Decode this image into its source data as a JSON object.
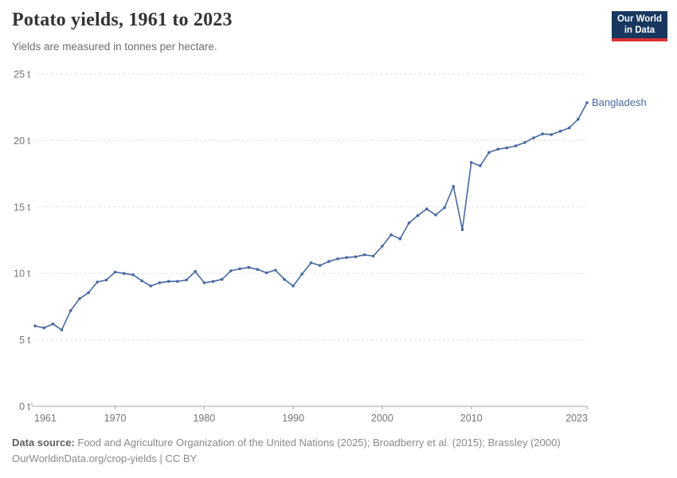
{
  "header": {
    "title": "Potato yields, 1961 to 2023",
    "subtitle": "Yields are measured in tonnes per hectare.",
    "logo": {
      "line1": "Our World",
      "line2": "in Data",
      "bg_color": "#18375f",
      "stripe_color": "#dc2e34"
    }
  },
  "chart_data": {
    "type": "line",
    "title": "Potato yields, 1961 to 2023",
    "ylabel": "tonnes per hectare",
    "unit": "t",
    "grid": "horizontal-dashed",
    "legend_position": "end-of-line-label",
    "x_range": [
      1961,
      2023
    ],
    "ylim": [
      0,
      25
    ],
    "x": [
      1961,
      1962,
      1963,
      1964,
      1965,
      1966,
      1967,
      1968,
      1969,
      1970,
      1971,
      1972,
      1973,
      1974,
      1975,
      1976,
      1977,
      1978,
      1979,
      1980,
      1981,
      1982,
      1983,
      1984,
      1985,
      1986,
      1987,
      1988,
      1989,
      1990,
      1991,
      1992,
      1993,
      1994,
      1995,
      1996,
      1997,
      1998,
      1999,
      2000,
      2001,
      2002,
      2003,
      2004,
      2005,
      2006,
      2007,
      2008,
      2009,
      2010,
      2011,
      2012,
      2013,
      2014,
      2015,
      2016,
      2017,
      2018,
      2019,
      2020,
      2021,
      2022,
      2023
    ],
    "series": [
      {
        "name": "Bangladesh",
        "color": "#4868a0",
        "values": [
          6.05,
          5.9,
          6.2,
          5.75,
          7.2,
          8.1,
          8.55,
          9.35,
          9.5,
          10.1,
          10.0,
          9.9,
          9.45,
          9.05,
          9.3,
          9.4,
          9.4,
          9.5,
          10.15,
          9.3,
          9.4,
          9.55,
          10.2,
          10.35,
          10.45,
          10.3,
          10.05,
          10.25,
          9.55,
          9.05,
          9.95,
          10.8,
          10.6,
          10.9,
          11.1,
          11.2,
          11.25,
          11.4,
          11.3,
          12.05,
          12.9,
          12.6,
          13.8,
          14.35,
          14.85,
          14.4,
          14.95,
          16.55,
          13.3,
          18.35,
          18.1,
          19.1,
          19.35,
          19.45,
          19.6,
          19.85,
          20.2,
          20.5,
          20.45,
          20.7,
          20.95,
          21.6,
          22.85
        ]
      }
    ],
    "yticks": [
      {
        "value": 0,
        "label": "0 t"
      },
      {
        "value": 5,
        "label": "5 t"
      },
      {
        "value": 10,
        "label": "10 t"
      },
      {
        "value": 15,
        "label": "15 t"
      },
      {
        "value": 20,
        "label": "20 t"
      },
      {
        "value": 25,
        "label": "25 t"
      }
    ],
    "xticks": [
      {
        "value": 1961,
        "label": "1961"
      },
      {
        "value": 1970,
        "label": "1970"
      },
      {
        "value": 1980,
        "label": "1980"
      },
      {
        "value": 1990,
        "label": "1990"
      },
      {
        "value": 2000,
        "label": "2000"
      },
      {
        "value": 2010,
        "label": "2010"
      },
      {
        "value": 2023,
        "label": "2023"
      }
    ],
    "colors": {
      "gridline": "#dcdcdc",
      "axis": "#a3a3a3",
      "tick_text": "#757575"
    }
  },
  "footer": {
    "source_label": "Data source:",
    "source_text": "Food and Agriculture Organization of the United Nations (2025); Broadberry et al. (2015); Brassley (2000)",
    "link": "OurWorldinData.org/crop-yields",
    "separator": " | ",
    "license": "CC BY"
  }
}
